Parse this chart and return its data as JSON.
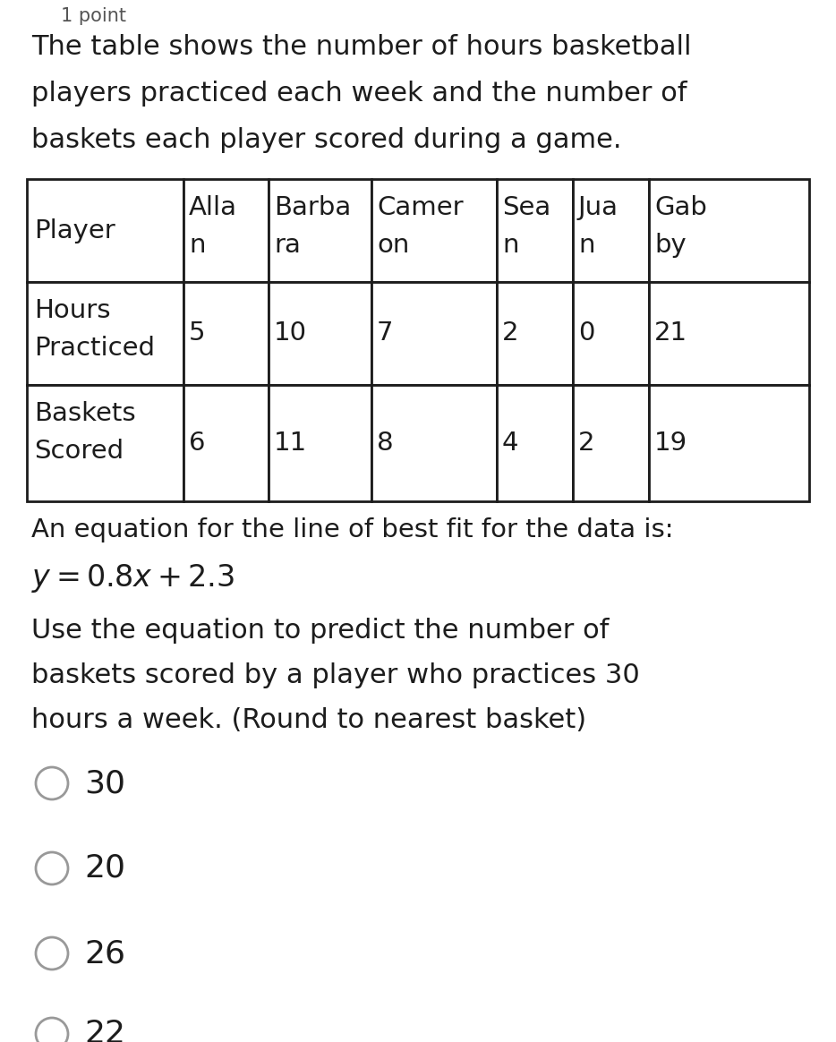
{
  "header_text": "1 point",
  "intro_line1": "The table shows the number of hours basketball",
  "intro_line2": "players practiced each week and the number of",
  "intro_line3": "baskets each player scored during a game.",
  "player_label": "Player",
  "player_names_top": [
    "Alla",
    "Barba",
    "Camer",
    "Sea",
    "Jua",
    "Gab"
  ],
  "player_names_bot": [
    "n",
    "ra",
    "on",
    "n",
    "n",
    "by"
  ],
  "row1_label_top": "Hours",
  "row1_label_bot": "Practiced",
  "row1_values": [
    "5",
    "10",
    "7",
    "2",
    "0",
    "21"
  ],
  "row2_label_top": "Baskets",
  "row2_label_bot": "Scored",
  "row2_values": [
    "6",
    "11",
    "8",
    "4",
    "2",
    "19"
  ],
  "eq_intro": "An equation for the line of best fit for the data is:",
  "eq_text": "y = 0.8x + 2.3",
  "question_line1": "Use the equation to predict the number of",
  "question_line2": "baskets scored by a player who practices 30",
  "question_line3": "hours a week. (Round to nearest basket)",
  "choices": [
    "30",
    "20",
    "26",
    "22"
  ],
  "bg_color": "#ffffff",
  "text_color": "#1c1c1c",
  "border_color": "#1c1c1c",
  "radio_color": "#999999",
  "fs_header": 15,
  "fs_intro": 22,
  "fs_table": 21,
  "fs_eq_intro": 21,
  "fs_eq": 24,
  "fs_question": 22,
  "fs_choices": 26
}
